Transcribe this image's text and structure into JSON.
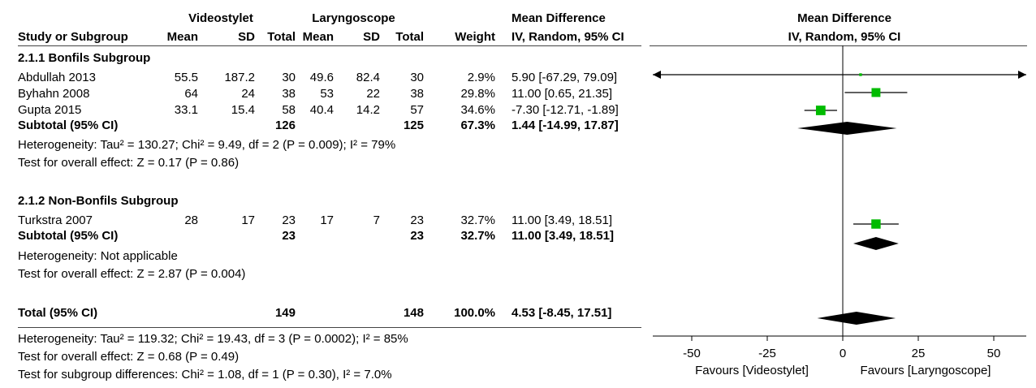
{
  "headers": {
    "group1": "Videostylet",
    "group2": "Laryngoscope",
    "md_top": "Mean Difference",
    "md_bottom": "IV, Random, 95% CI",
    "plot_top": "Mean Difference",
    "plot_bottom": "IV, Random, 95% CI",
    "study": "Study or Subgroup",
    "mean1": "Mean",
    "sd1": "SD",
    "total1": "Total",
    "mean2": "Mean",
    "sd2": "SD",
    "total2": "Total",
    "weight": "Weight"
  },
  "subgroups": [
    {
      "title": "2.1.1 Bonfils Subgroup",
      "studies": [
        {
          "name": "Abdullah 2013",
          "mean1": "55.5",
          "sd1": "187.2",
          "total1": "30",
          "mean2": "49.6",
          "sd2": "82.4",
          "total2": "30",
          "weight": "2.9%",
          "ci": "5.90 [-67.29, 79.09]"
        },
        {
          "name": "Byhahn 2008",
          "mean1": "64",
          "sd1": "24",
          "total1": "38",
          "mean2": "53",
          "sd2": "22",
          "total2": "38",
          "weight": "29.8%",
          "ci": "11.00 [0.65, 21.35]"
        },
        {
          "name": "Gupta 2015",
          "mean1": "33.1",
          "sd1": "15.4",
          "total1": "58",
          "mean2": "40.4",
          "sd2": "14.2",
          "total2": "57",
          "weight": "34.6%",
          "ci": "-7.30 [-12.71, -1.89]"
        }
      ],
      "subtotal": {
        "label": "Subtotal (95% CI)",
        "total1": "126",
        "total2": "125",
        "weight": "67.3%",
        "ci": "1.44 [-14.99, 17.87]"
      },
      "heterogeneity": "Heterogeneity: Tau² = 130.27; Chi² = 9.49, df = 2 (P = 0.009); I² = 79%",
      "overall": "Test for overall effect: Z = 0.17 (P = 0.86)"
    },
    {
      "title": "2.1.2 Non-Bonfils Subgroup",
      "studies": [
        {
          "name": "Turkstra 2007",
          "mean1": "28",
          "sd1": "17",
          "total1": "23",
          "mean2": "17",
          "sd2": "7",
          "total2": "23",
          "weight": "32.7%",
          "ci": "11.00 [3.49, 18.51]"
        }
      ],
      "subtotal": {
        "label": "Subtotal (95% CI)",
        "total1": "23",
        "total2": "23",
        "weight": "32.7%",
        "ci": "11.00 [3.49, 18.51]"
      },
      "heterogeneity": "Heterogeneity: Not applicable",
      "overall": "Test for overall effect: Z = 2.87 (P = 0.004)"
    }
  ],
  "total": {
    "label": "Total (95% CI)",
    "total1": "149",
    "total2": "148",
    "weight": "100.0%",
    "ci": "4.53 [-8.45, 17.51]",
    "heterogeneity": "Heterogeneity: Tau² = 119.32; Chi² = 19.43, df = 3 (P = 0.0002); I² = 85%",
    "overall": "Test for overall effect: Z = 0.68 (P = 0.49)",
    "subgroup_diff": "Test for subgroup differences: Chi² = 1.08, df = 1 (P = 0.30), I² = 7.0%"
  },
  "axis": {
    "favours_left": "Favours [Videostylet]",
    "favours_right": "Favours [Laryngoscope]"
  },
  "colors": {
    "square": "#00bb00",
    "diamond": "#000000",
    "line": "#000000"
  },
  "chart_data": {
    "type": "forest",
    "xlim": [
      -50,
      50
    ],
    "ticks": [
      -50,
      -25,
      0,
      25,
      50
    ],
    "tick_labels": [
      "-50",
      "-25",
      "0",
      "25",
      "50"
    ],
    "studies": [
      {
        "name": "Abdullah 2013",
        "md": 5.9,
        "lo": -67.29,
        "hi": 79.09,
        "weight": 2.9
      },
      {
        "name": "Byhahn 2008",
        "md": 11.0,
        "lo": 0.65,
        "hi": 21.35,
        "weight": 29.8
      },
      {
        "name": "Gupta 2015",
        "md": -7.3,
        "lo": -12.71,
        "hi": -1.89,
        "weight": 34.6
      },
      {
        "name": "Turkstra 2007",
        "md": 11.0,
        "lo": 3.49,
        "hi": 18.51,
        "weight": 32.7
      }
    ],
    "diamonds": [
      {
        "name": "Subtotal Bonfils",
        "md": 1.44,
        "lo": -14.99,
        "hi": 17.87
      },
      {
        "name": "Subtotal Non-Bonfils",
        "md": 11.0,
        "lo": 3.49,
        "hi": 18.51
      },
      {
        "name": "Total",
        "md": 4.53,
        "lo": -8.45,
        "hi": 17.51
      }
    ]
  }
}
